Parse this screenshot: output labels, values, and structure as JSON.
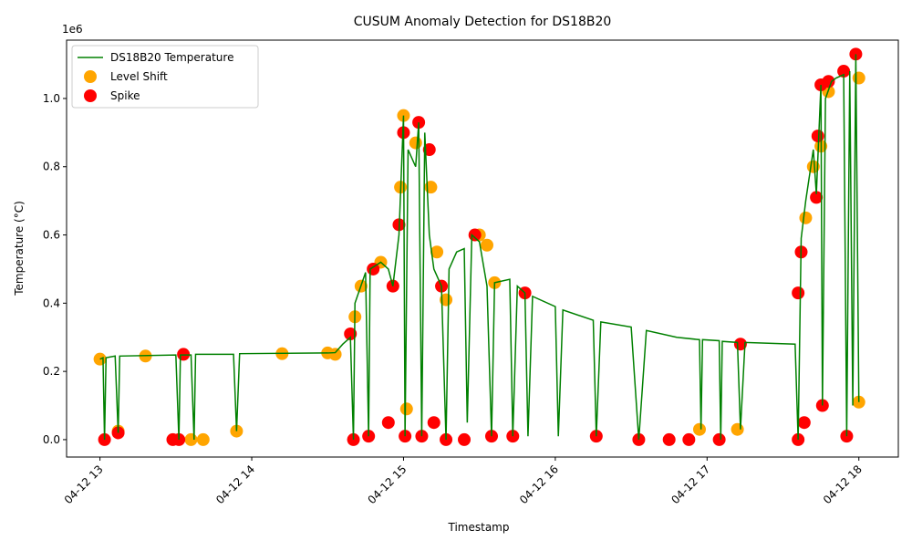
{
  "chart_data": {
    "type": "line",
    "title": "CUSUM Anomaly Detection for DS18B20",
    "x_label": "Timestamp",
    "y_label": "Temperature (°C)",
    "y_offset_label": "1e6",
    "xlim": [
      12.78,
      18.26
    ],
    "ylim": [
      -0.051,
      1.171
    ],
    "xticks": [
      {
        "value": 13,
        "label": "04-12 13"
      },
      {
        "value": 14,
        "label": "04-12 14"
      },
      {
        "value": 15,
        "label": "04-12 15"
      },
      {
        "value": 16,
        "label": "04-12 16"
      },
      {
        "value": 17,
        "label": "04-12 17"
      },
      {
        "value": 18,
        "label": "04-12 18"
      }
    ],
    "yticks": [
      {
        "value": 0,
        "label": "0.0"
      },
      {
        "value": 0.2,
        "label": "0.2"
      },
      {
        "value": 0.4,
        "label": "0.4"
      },
      {
        "value": 0.6,
        "label": "0.6"
      },
      {
        "value": 0.8,
        "label": "0.8"
      },
      {
        "value": 1,
        "label": "1.0"
      }
    ],
    "legend": "upper left",
    "series": [
      {
        "name": "DS18B20 Temperature",
        "type": "line",
        "color": "#008000",
        "x": [
          13.0,
          13.02,
          13.03,
          13.04,
          13.1,
          13.12,
          13.13,
          13.5,
          13.52,
          13.53,
          13.6,
          13.62,
          13.63,
          13.88,
          13.9,
          13.92,
          14.5,
          14.55,
          14.6,
          14.65,
          14.67,
          14.68,
          14.75,
          14.77,
          14.78,
          14.85,
          14.9,
          14.93,
          14.97,
          15.0,
          15.01,
          15.03,
          15.08,
          15.1,
          15.12,
          15.14,
          15.17,
          15.2,
          15.25,
          15.28,
          15.3,
          15.35,
          15.4,
          15.42,
          15.45,
          15.5,
          15.55,
          15.58,
          15.6,
          15.7,
          15.72,
          15.75,
          15.8,
          15.82,
          15.85,
          16.0,
          16.02,
          16.05,
          16.25,
          16.27,
          16.3,
          16.5,
          16.55,
          16.6,
          16.8,
          16.95,
          16.96,
          16.97,
          17.08,
          17.09,
          17.1,
          17.2,
          17.22,
          17.25,
          17.58,
          17.6,
          17.62,
          17.65,
          17.7,
          17.72,
          17.75,
          17.76,
          17.78,
          17.82,
          17.85,
          17.9,
          17.92,
          17.94,
          17.96,
          17.98,
          18.0
        ],
        "values": [
          0.236,
          0.24,
          0.0,
          0.24,
          0.245,
          0.02,
          0.245,
          0.248,
          0.0,
          0.248,
          0.248,
          0.0,
          0.25,
          0.25,
          0.025,
          0.252,
          0.254,
          0.255,
          0.28,
          0.3,
          0.0,
          0.4,
          0.49,
          0.01,
          0.5,
          0.52,
          0.5,
          0.45,
          0.6,
          0.95,
          0.01,
          0.85,
          0.8,
          0.93,
          0.01,
          0.9,
          0.6,
          0.5,
          0.45,
          0.0,
          0.5,
          0.55,
          0.56,
          0.05,
          0.6,
          0.58,
          0.45,
          0.01,
          0.46,
          0.47,
          0.01,
          0.45,
          0.43,
          0.01,
          0.42,
          0.39,
          0.01,
          0.38,
          0.35,
          0.01,
          0.345,
          0.33,
          0.0,
          0.32,
          0.3,
          0.293,
          0.03,
          0.293,
          0.29,
          0.0,
          0.288,
          0.285,
          0.03,
          0.285,
          0.28,
          0.0,
          0.59,
          0.7,
          0.85,
          0.72,
          1.04,
          0.1,
          1.0,
          1.05,
          1.06,
          1.07,
          0.01,
          1.08,
          0.1,
          1.13,
          0.11
        ]
      },
      {
        "name": "Level Shift",
        "type": "scatter",
        "color": "#ffa500",
        "x": [
          13.0,
          13.12,
          13.3,
          13.6,
          13.68,
          13.9,
          14.2,
          14.5,
          14.55,
          14.68,
          14.72,
          14.85,
          14.98,
          15.0,
          15.02,
          15.08,
          15.18,
          15.22,
          15.28,
          15.5,
          15.55,
          15.6,
          16.95,
          17.2,
          17.65,
          17.7,
          17.75,
          17.8,
          18.0,
          18.0
        ],
        "values": [
          0.236,
          0.025,
          0.245,
          0.0,
          0.0,
          0.025,
          0.252,
          0.254,
          0.25,
          0.36,
          0.45,
          0.52,
          0.74,
          0.95,
          0.09,
          0.87,
          0.74,
          0.55,
          0.41,
          0.6,
          0.57,
          0.46,
          0.03,
          0.03,
          0.65,
          0.8,
          0.86,
          1.02,
          1.06,
          0.11
        ]
      },
      {
        "name": "Spike",
        "type": "scatter",
        "color": "#ff0000",
        "x": [
          13.03,
          13.12,
          13.48,
          13.52,
          13.55,
          14.65,
          14.67,
          14.77,
          14.8,
          14.9,
          14.93,
          14.97,
          15.0,
          15.01,
          15.1,
          15.12,
          15.17,
          15.2,
          15.25,
          15.28,
          15.4,
          15.47,
          15.58,
          15.72,
          15.8,
          16.27,
          16.55,
          16.75,
          16.88,
          17.08,
          17.22,
          17.6,
          17.6,
          17.62,
          17.64,
          17.72,
          17.73,
          17.75,
          17.76,
          17.8,
          17.92,
          17.9,
          17.98
        ],
        "values": [
          0.0,
          0.02,
          0.0,
          0.0,
          0.25,
          0.31,
          0.0,
          0.01,
          0.5,
          0.05,
          0.45,
          0.63,
          0.9,
          0.01,
          0.93,
          0.01,
          0.85,
          0.05,
          0.45,
          0.0,
          0.0,
          0.6,
          0.01,
          0.01,
          0.43,
          0.01,
          0.0,
          0.0,
          0.0,
          0.0,
          0.28,
          0.0,
          0.43,
          0.55,
          0.05,
          0.71,
          0.89,
          1.04,
          0.1,
          1.05,
          0.01,
          1.08,
          1.13
        ]
      }
    ]
  }
}
